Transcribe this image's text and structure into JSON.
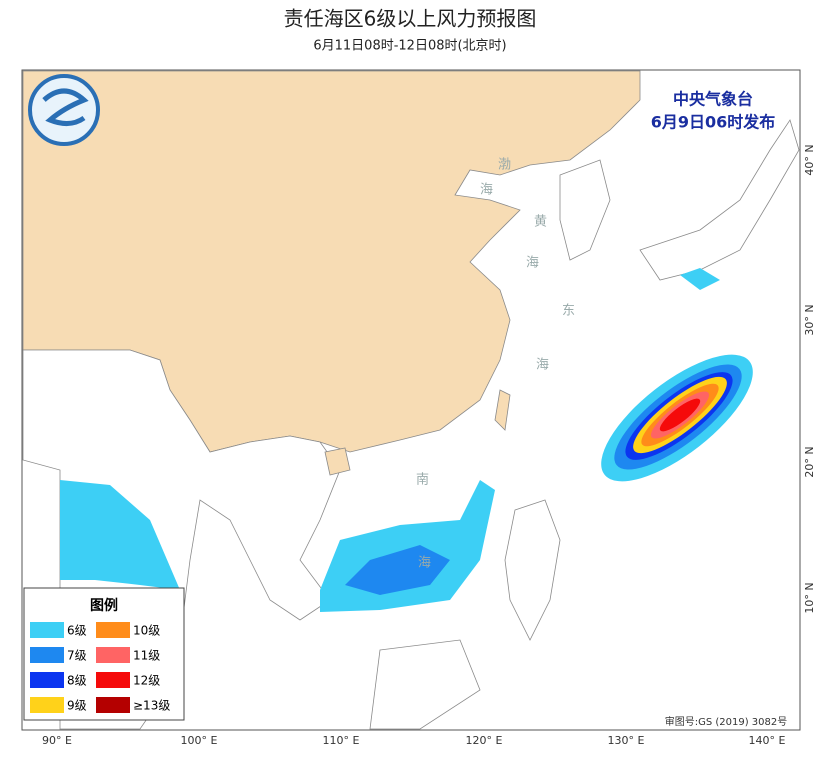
{
  "header": {
    "title": "责任海区6级以上风力预报图",
    "subtitle": "6月11日08时-12日08时(北京时)"
  },
  "issuer": {
    "name": "中央气象台",
    "time": "6月9日06时发布"
  },
  "sea_labels": [
    "渤",
    "海",
    "黄",
    "海",
    "东",
    "海",
    "南",
    "海"
  ],
  "axes": {
    "longitudes": [
      "90° E",
      "100° E",
      "110° E",
      "120° E",
      "130° E",
      "140° E"
    ],
    "latitudes": [
      "10° N",
      "20° N",
      "30° N",
      "40° N"
    ]
  },
  "legend": {
    "title": "图例",
    "items": [
      {
        "label": "6级",
        "color": "#3dcff5"
      },
      {
        "label": "7级",
        "color": "#1e88f0"
      },
      {
        "label": "8级",
        "color": "#0b35f0"
      },
      {
        "label": "9级",
        "color": "#ffd21a"
      },
      {
        "label": "10级",
        "color": "#ff8c1a"
      },
      {
        "label": "11级",
        "color": "#ff6464"
      },
      {
        "label": "12级",
        "color": "#f50a0a"
      },
      {
        "label": "≥13级",
        "color": "#b40000"
      }
    ]
  },
  "approval": "审图号:GS (2019) 3082号"
}
